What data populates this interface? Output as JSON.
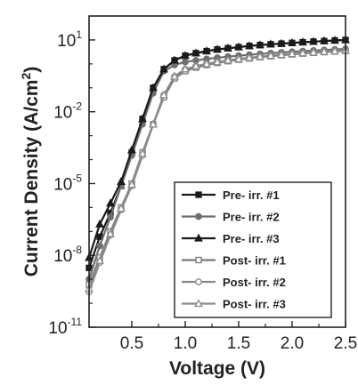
{
  "chart_data": {
    "type": "line",
    "title": "",
    "xlabel": "Voltage (V)",
    "ylabel_main": "Current Density (A/cm",
    "ylabel_sup": "2",
    "ylabel_tail": ")",
    "x_scale": "linear",
    "y_scale": "log",
    "xlim": [
      0.1,
      2.5
    ],
    "ylim": [
      1e-11,
      100
    ],
    "x_ticks": [
      {
        "value": 0.5,
        "label": "0.5"
      },
      {
        "value": 1.0,
        "label": "1.0"
      },
      {
        "value": 1.5,
        "label": "1.5"
      },
      {
        "value": 2.0,
        "label": "2.0"
      },
      {
        "value": 2.5,
        "label": "2.5"
      }
    ],
    "y_ticks": [
      {
        "value": 1e-11,
        "base": "10",
        "exp": "-11"
      },
      {
        "value": 1e-08,
        "base": "10",
        "exp": "-8"
      },
      {
        "value": 1e-05,
        "base": "10",
        "exp": "-5"
      },
      {
        "value": 0.01,
        "base": "10",
        "exp": "-2"
      },
      {
        "value": 10,
        "base": "10",
        "exp": "1"
      }
    ],
    "grid": false,
    "legend_position": "bottom-right",
    "series": [
      {
        "name": "Pre- irr. #1",
        "marker": "square-filled",
        "color": "#1a1a1a",
        "x": [
          0.1,
          0.2,
          0.3,
          0.4,
          0.5,
          0.6,
          0.7,
          0.8,
          0.9,
          1.0,
          1.1,
          1.2,
          1.3,
          1.4,
          1.5,
          1.6,
          1.7,
          1.8,
          1.9,
          2.0,
          2.1,
          2.2,
          2.3,
          2.4,
          2.5
        ],
        "y": [
          3e-09,
          6e-08,
          6e-07,
          8e-06,
          0.0002,
          0.005,
          0.1,
          0.6,
          1.4,
          2.2,
          2.8,
          3.4,
          4.0,
          4.5,
          5.0,
          5.6,
          6.1,
          6.6,
          7.0,
          7.5,
          8.0,
          8.5,
          9.0,
          9.5,
          10
        ]
      },
      {
        "name": "Pre- irr. #2",
        "marker": "circle-filled",
        "color": "#6e6e6e",
        "x": [
          0.1,
          0.2,
          0.3,
          0.4,
          0.5,
          0.6,
          0.7,
          0.8,
          0.9,
          1.0,
          1.1,
          1.2,
          1.3,
          1.4,
          1.5,
          1.6,
          1.7,
          1.8,
          1.9,
          2.0,
          2.1,
          2.2,
          2.3,
          2.4,
          2.5
        ],
        "y": [
          1e-09,
          2.5e-08,
          4e-07,
          8e-06,
          0.00015,
          0.003,
          0.06,
          0.5,
          0.9,
          1.2,
          1.4,
          1.6,
          1.8,
          2.0,
          2.2,
          2.4,
          2.6,
          2.8,
          3.0,
          3.2,
          3.4,
          3.6,
          3.8,
          4.0,
          4.2
        ]
      },
      {
        "name": "Pre- irr. #3",
        "marker": "triangle-filled",
        "color": "#1a1a1a",
        "x": [
          0.1,
          0.2,
          0.3,
          0.4,
          0.5,
          0.6,
          0.7,
          0.8,
          0.9,
          1.0,
          1.1,
          1.2,
          1.3,
          1.4,
          1.5,
          1.6,
          1.7,
          1.8,
          1.9,
          2.0,
          2.1,
          2.2,
          2.3,
          2.4,
          2.5
        ],
        "y": [
          8e-09,
          2e-07,
          1.5e-06,
          1.2e-05,
          0.00025,
          0.005,
          0.1,
          0.6,
          1.4,
          2.2,
          2.8,
          3.4,
          4.0,
          4.5,
          5.0,
          5.6,
          6.1,
          6.6,
          7.0,
          7.5,
          8.0,
          8.5,
          9.0,
          9.5,
          10
        ]
      },
      {
        "name": "Post- irr. #1",
        "marker": "square-open",
        "color": "#7a7a7a",
        "x": [
          0.1,
          0.2,
          0.3,
          0.4,
          0.5,
          0.6,
          0.7,
          0.8,
          0.9,
          1.0,
          1.1,
          1.2,
          1.3,
          1.4,
          1.5,
          1.6,
          1.7,
          1.8,
          1.9,
          2.0,
          2.1,
          2.2,
          2.3,
          2.4,
          2.5
        ],
        "y": [
          6e-10,
          8e-09,
          1e-07,
          1e-06,
          1e-05,
          0.0002,
          0.003,
          0.04,
          0.25,
          0.5,
          0.7,
          0.9,
          1.1,
          1.3,
          1.5,
          1.7,
          1.9,
          2.1,
          2.3,
          2.5,
          2.7,
          2.9,
          3.1,
          3.3,
          3.5
        ]
      },
      {
        "name": "Post- irr. #2",
        "marker": "circle-open",
        "color": "#8a8a8a",
        "x": [
          0.1,
          0.2,
          0.3,
          0.4,
          0.5,
          0.6,
          0.7,
          0.8,
          0.9,
          1.0,
          1.1,
          1.2,
          1.3,
          1.4,
          1.5,
          1.6,
          1.7,
          1.8,
          1.9,
          2.0,
          2.1,
          2.2,
          2.3,
          2.4,
          2.5
        ],
        "y": [
          3e-10,
          5e-09,
          7e-08,
          8e-07,
          8e-06,
          0.00015,
          0.003,
          0.05,
          0.3,
          0.6,
          0.8,
          1.0,
          1.2,
          1.4,
          1.6,
          1.8,
          2.0,
          2.2,
          2.4,
          2.6,
          2.8,
          3.0,
          3.2,
          3.4,
          3.6
        ]
      },
      {
        "name": "Post- irr. #3",
        "marker": "triangle-open",
        "color": "#8a8a8a",
        "x": [
          0.1,
          0.2,
          0.3,
          0.4,
          0.5,
          0.6,
          0.7,
          0.8,
          0.9,
          1.0,
          1.1,
          1.2,
          1.3,
          1.4,
          1.5,
          1.6,
          1.7,
          1.8,
          1.9,
          2.0,
          2.1,
          2.2,
          2.3,
          2.4,
          2.5
        ],
        "y": [
          4e-10,
          6e-09,
          8e-08,
          9e-07,
          9e-06,
          0.00018,
          0.003,
          0.05,
          0.3,
          0.6,
          0.8,
          1.0,
          1.2,
          1.4,
          1.6,
          1.8,
          2.0,
          2.2,
          2.4,
          2.6,
          2.8,
          3.0,
          3.2,
          3.4,
          3.6
        ]
      }
    ]
  }
}
